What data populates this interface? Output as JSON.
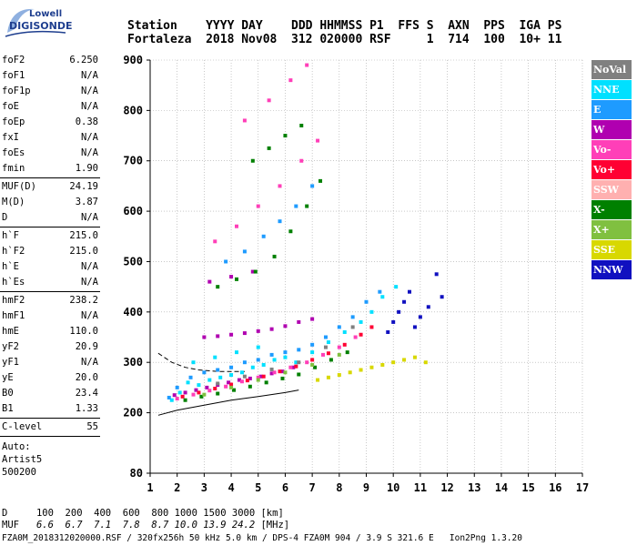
{
  "logo": {
    "line1": "Lowell",
    "line2": "DIGISONDE"
  },
  "header": {
    "row1": "Station    YYYY DAY    DDD HHMMSS P1  FFS S  AXN  PPS  IGA PS",
    "row2": "Fortaleza  2018 Nov08  312 020000 RSF     1  714  100  10+ 11"
  },
  "params": {
    "group1": [
      {
        "k": "foF2",
        "v": "6.250"
      },
      {
        "k": "foF1",
        "v": "N/A"
      },
      {
        "k": "foF1p",
        "v": "N/A"
      },
      {
        "k": "foE",
        "v": "N/A"
      },
      {
        "k": "foEp",
        "v": "0.38"
      },
      {
        "k": "fxI",
        "v": "N/A"
      },
      {
        "k": "foEs",
        "v": "N/A"
      },
      {
        "k": "fmin",
        "v": "1.90"
      }
    ],
    "group2": [
      {
        "k": "MUF(D)",
        "v": "24.19"
      },
      {
        "k": "M(D)",
        "v": "3.87"
      },
      {
        "k": "D",
        "v": "N/A"
      }
    ],
    "group3": [
      {
        "k": "h`F",
        "v": "215.0"
      },
      {
        "k": "h`F2",
        "v": "215.0"
      },
      {
        "k": "h`E",
        "v": "N/A"
      },
      {
        "k": "h`Es",
        "v": "N/A"
      }
    ],
    "group4": [
      {
        "k": "hmF2",
        "v": "238.2"
      },
      {
        "k": "hmF1",
        "v": "N/A"
      },
      {
        "k": "hmE",
        "v": "110.0"
      },
      {
        "k": "yF2",
        "v": "20.9"
      },
      {
        "k": "yF1",
        "v": "N/A"
      },
      {
        "k": "yE",
        "v": "20.0"
      },
      {
        "k": "B0",
        "v": "23.4"
      },
      {
        "k": "B1",
        "v": "1.33"
      }
    ],
    "group5": [
      {
        "k": "C-level",
        "v": "55"
      }
    ],
    "auto": [
      "Auto:",
      "Artist5",
      "500200"
    ]
  },
  "legend": [
    {
      "label": "NoVal",
      "color": "#808080"
    },
    {
      "label": "NNE",
      "color": "#00e0ff"
    },
    {
      "label": "E",
      "color": "#1e9bff"
    },
    {
      "label": "W",
      "color": "#b000b0"
    },
    {
      "label": "Vo-",
      "color": "#ff3fb8"
    },
    {
      "label": "Vo+",
      "color": "#ff0033"
    },
    {
      "label": "SSW",
      "color": "#ffb0b0"
    },
    {
      "label": "X-",
      "color": "#008000"
    },
    {
      "label": "X+",
      "color": "#80c040"
    },
    {
      "label": "SSE",
      "color": "#d8d800"
    },
    {
      "label": "NNW",
      "color": "#1010c0"
    }
  ],
  "footer": {
    "d_label": "D",
    "d_values": "100  200  400  600  800 1000 1500 3000 [km]",
    "muf_label": "MUF",
    "muf_values": "6.6  6.7  7.1  7.8  8.7 10.0 13.9 24.2",
    "muf_unit": "[MHz]",
    "line3": "FZA0M_2018312020000.RSF / 320fx256h 50 kHz 5.0 km / DPS-4 FZA0M 904 / 3.9 S 321.6 E   Ion2Png 1.3.20"
  },
  "chart_data": {
    "type": "scatter",
    "xlim": [
      1,
      17
    ],
    "ylim": [
      80,
      900
    ],
    "x_ticks": [
      1,
      2,
      3,
      4,
      5,
      6,
      7,
      8,
      9,
      10,
      11,
      12,
      13,
      14,
      15,
      16,
      17
    ],
    "y_ticks": [
      80,
      200,
      300,
      400,
      500,
      600,
      700,
      800,
      900
    ],
    "grid": true,
    "series": [
      {
        "name": "NNE",
        "color": "#00e0ff",
        "points": [
          [
            1.8,
            225
          ],
          [
            2.1,
            240
          ],
          [
            2.4,
            260
          ],
          [
            2.8,
            255
          ],
          [
            3.2,
            265
          ],
          [
            3.6,
            270
          ],
          [
            4.0,
            275
          ],
          [
            4.4,
            280
          ],
          [
            4.8,
            290
          ],
          [
            5.2,
            295
          ],
          [
            5.6,
            305
          ],
          [
            6.0,
            310
          ],
          [
            6.4,
            300
          ],
          [
            7.0,
            320
          ],
          [
            7.6,
            340
          ],
          [
            8.2,
            360
          ],
          [
            8.8,
            380
          ],
          [
            9.2,
            400
          ],
          [
            9.6,
            430
          ],
          [
            10.1,
            450
          ],
          [
            2.6,
            300
          ],
          [
            3.4,
            310
          ],
          [
            4.2,
            320
          ],
          [
            5.0,
            330
          ]
        ]
      },
      {
        "name": "E",
        "color": "#1e9bff",
        "points": [
          [
            1.7,
            230
          ],
          [
            2.0,
            250
          ],
          [
            2.5,
            270
          ],
          [
            3.0,
            280
          ],
          [
            3.5,
            285
          ],
          [
            4.0,
            290
          ],
          [
            4.5,
            300
          ],
          [
            5.0,
            305
          ],
          [
            5.5,
            315
          ],
          [
            6.0,
            320
          ],
          [
            6.5,
            325
          ],
          [
            7.0,
            335
          ],
          [
            7.5,
            350
          ],
          [
            8.0,
            370
          ],
          [
            8.5,
            390
          ],
          [
            9.0,
            420
          ],
          [
            9.5,
            440
          ],
          [
            3.8,
            500
          ],
          [
            4.5,
            520
          ],
          [
            5.2,
            550
          ],
          [
            5.8,
            580
          ],
          [
            6.4,
            610
          ],
          [
            7.0,
            650
          ]
        ]
      },
      {
        "name": "W",
        "color": "#b000b0",
        "points": [
          [
            1.9,
            235
          ],
          [
            2.3,
            240
          ],
          [
            2.7,
            245
          ],
          [
            3.1,
            250
          ],
          [
            3.5,
            255
          ],
          [
            3.9,
            260
          ],
          [
            4.3,
            265
          ],
          [
            4.7,
            268
          ],
          [
            5.1,
            272
          ],
          [
            5.5,
            278
          ],
          [
            5.9,
            282
          ],
          [
            6.3,
            290
          ],
          [
            3.0,
            350
          ],
          [
            3.5,
            352
          ],
          [
            4.0,
            355
          ],
          [
            4.5,
            358
          ],
          [
            5.0,
            362
          ],
          [
            5.5,
            366
          ],
          [
            6.0,
            372
          ],
          [
            6.5,
            380
          ],
          [
            7.0,
            386
          ],
          [
            3.2,
            460
          ],
          [
            4.0,
            470
          ],
          [
            4.8,
            480
          ]
        ]
      },
      {
        "name": "Vo-",
        "color": "#ff3fb8",
        "points": [
          [
            2.0,
            228
          ],
          [
            2.6,
            236
          ],
          [
            3.2,
            244
          ],
          [
            3.8,
            252
          ],
          [
            4.4,
            262
          ],
          [
            5.0,
            270
          ],
          [
            5.6,
            280
          ],
          [
            6.2,
            290
          ],
          [
            6.8,
            300
          ],
          [
            7.4,
            315
          ],
          [
            8.0,
            330
          ],
          [
            8.6,
            350
          ],
          [
            3.4,
            540
          ],
          [
            4.2,
            570
          ],
          [
            5.0,
            610
          ],
          [
            5.8,
            650
          ],
          [
            6.6,
            700
          ],
          [
            7.2,
            740
          ],
          [
            4.5,
            780
          ],
          [
            5.4,
            820
          ],
          [
            6.2,
            860
          ],
          [
            6.8,
            890
          ]
        ]
      },
      {
        "name": "Vo+",
        "color": "#ff0033",
        "points": [
          [
            2.2,
            232
          ],
          [
            2.8,
            240
          ],
          [
            3.4,
            248
          ],
          [
            4.0,
            256
          ],
          [
            4.6,
            264
          ],
          [
            5.2,
            272
          ],
          [
            5.8,
            282
          ],
          [
            6.4,
            292
          ],
          [
            7.0,
            305
          ],
          [
            7.6,
            318
          ],
          [
            8.2,
            335
          ],
          [
            8.8,
            355
          ],
          [
            9.2,
            370
          ]
        ]
      },
      {
        "name": "X-",
        "color": "#008000",
        "points": [
          [
            2.3,
            225
          ],
          [
            2.9,
            232
          ],
          [
            3.5,
            238
          ],
          [
            4.1,
            245
          ],
          [
            4.7,
            252
          ],
          [
            5.3,
            260
          ],
          [
            5.9,
            268
          ],
          [
            6.5,
            276
          ],
          [
            7.1,
            290
          ],
          [
            7.7,
            305
          ],
          [
            8.3,
            320
          ],
          [
            3.5,
            450
          ],
          [
            4.2,
            465
          ],
          [
            4.9,
            480
          ],
          [
            5.6,
            510
          ],
          [
            6.2,
            560
          ],
          [
            6.8,
            610
          ],
          [
            7.3,
            660
          ],
          [
            4.8,
            700
          ],
          [
            5.4,
            725
          ],
          [
            6.0,
            750
          ],
          [
            6.6,
            770
          ]
        ]
      },
      {
        "name": "X+",
        "color": "#80c040",
        "points": [
          [
            3.0,
            236
          ],
          [
            4.0,
            250
          ],
          [
            5.0,
            265
          ],
          [
            6.0,
            280
          ],
          [
            7.0,
            295
          ],
          [
            8.0,
            315
          ]
        ]
      },
      {
        "name": "SSE",
        "color": "#d8d800",
        "points": [
          [
            7.2,
            265
          ],
          [
            7.6,
            270
          ],
          [
            8.0,
            275
          ],
          [
            8.4,
            280
          ],
          [
            8.8,
            285
          ],
          [
            9.2,
            290
          ],
          [
            9.6,
            295
          ],
          [
            10.0,
            300
          ],
          [
            10.4,
            305
          ],
          [
            10.8,
            310
          ],
          [
            11.2,
            300
          ]
        ]
      },
      {
        "name": "NNW",
        "color": "#1010c0",
        "points": [
          [
            9.8,
            360
          ],
          [
            10.0,
            380
          ],
          [
            10.2,
            400
          ],
          [
            10.4,
            420
          ],
          [
            10.6,
            440
          ],
          [
            10.8,
            370
          ],
          [
            11.0,
            390
          ],
          [
            11.3,
            410
          ],
          [
            11.6,
            475
          ],
          [
            11.8,
            430
          ]
        ]
      },
      {
        "name": "NoVal",
        "color": "#808080",
        "points": [
          [
            3.5,
            258
          ],
          [
            4.5,
            272
          ],
          [
            5.5,
            286
          ],
          [
            6.5,
            300
          ],
          [
            7.5,
            330
          ],
          [
            8.5,
            370
          ]
        ]
      }
    ],
    "curves": [
      {
        "name": "profile-solid",
        "style": "solid",
        "points": [
          [
            1.3,
            195
          ],
          [
            2.0,
            205
          ],
          [
            3.0,
            215
          ],
          [
            4.0,
            225
          ],
          [
            5.0,
            232
          ],
          [
            6.0,
            240
          ],
          [
            6.5,
            245
          ]
        ]
      },
      {
        "name": "profile-dashed",
        "style": "dashed",
        "points": [
          [
            1.3,
            318
          ],
          [
            1.8,
            300
          ],
          [
            2.3,
            290
          ],
          [
            2.8,
            285
          ],
          [
            3.5,
            282
          ],
          [
            4.5,
            282
          ]
        ]
      }
    ]
  }
}
